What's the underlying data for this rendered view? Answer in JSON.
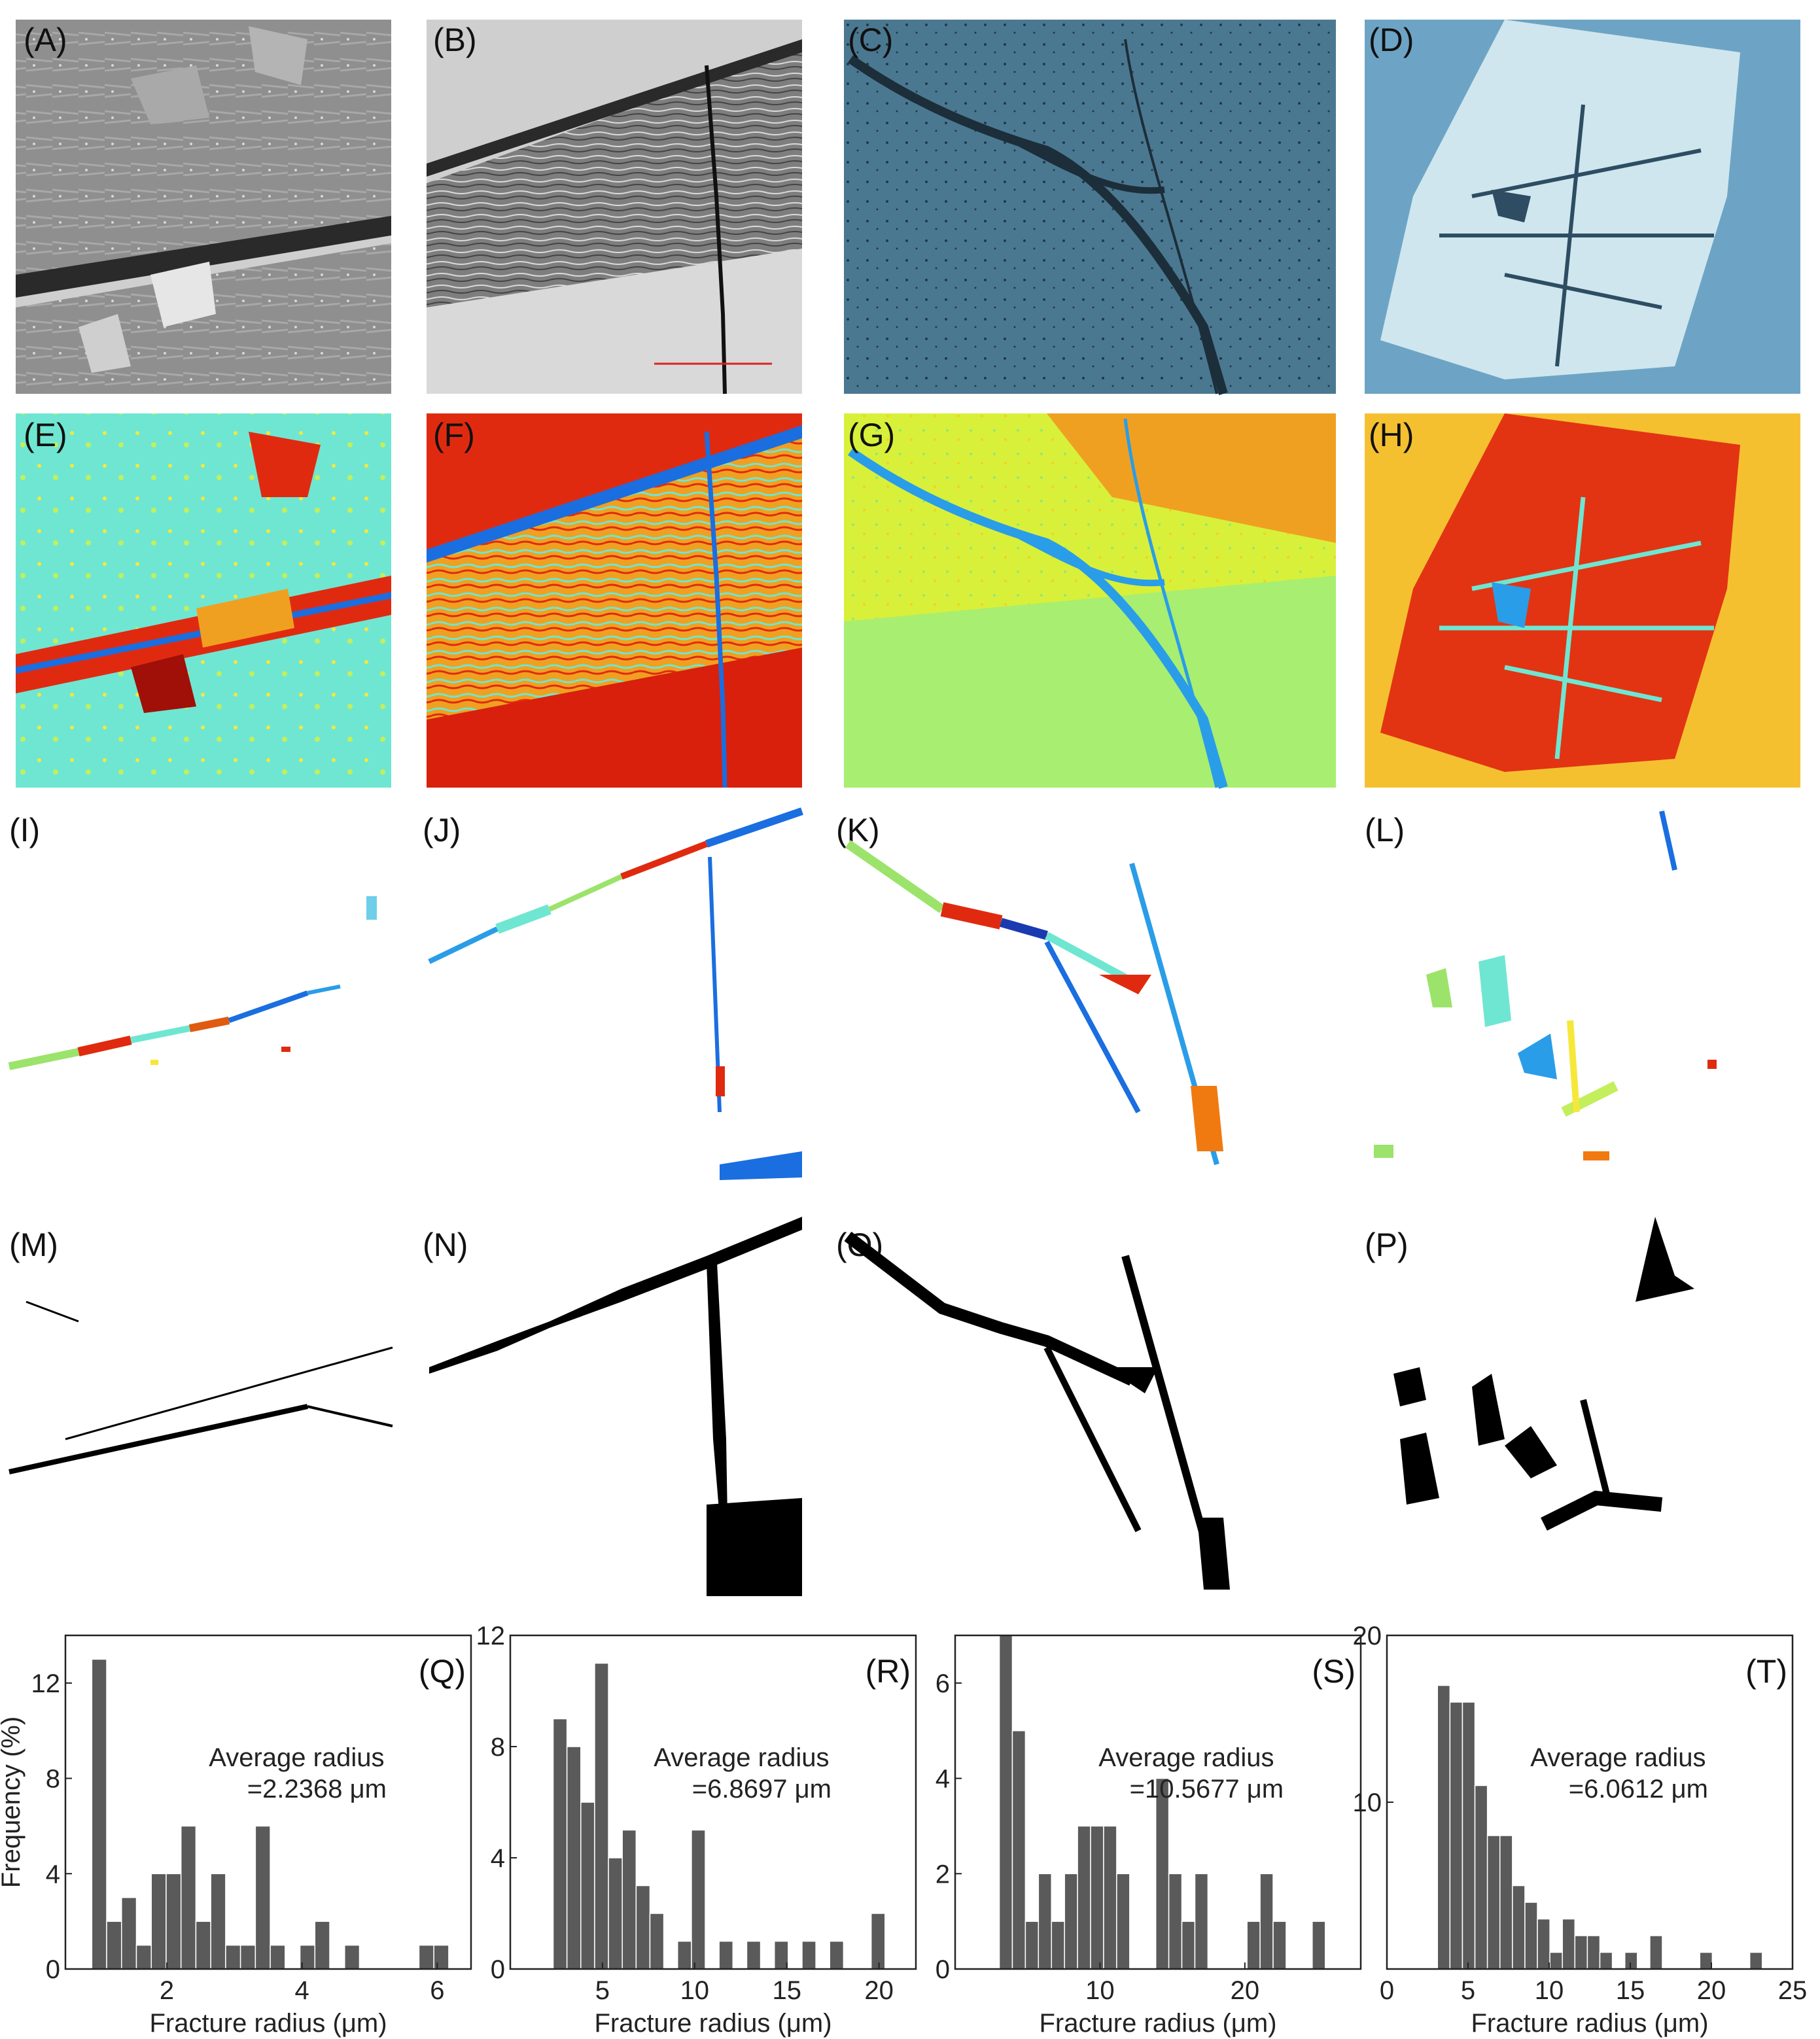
{
  "panels": {
    "row1": [
      "(A)",
      "(B)",
      "(C)",
      "(D)"
    ],
    "row2": [
      "(E)",
      "(F)",
      "(G)",
      "(H)"
    ],
    "row3": [
      "(I)",
      "(J)",
      "(K)",
      "(L)"
    ],
    "row4": [
      "(M)",
      "(N)",
      "(O)",
      "(P)"
    ]
  },
  "colors": {
    "bar": "#5a5a5a",
    "sem_gray": "#8c8c8c",
    "optical_gray": "#9a9a9a",
    "optical_blue": "#4b7891",
    "optical_lightblue": "#9fc6dc",
    "heat_cyan": "#6fe6d2",
    "heat_red": "#e02a10",
    "heat_yellow": "#f5e83a",
    "heat_blue": "#1a6ee0"
  },
  "chart_data": [
    {
      "type": "bar",
      "panel": "(Q)",
      "ylabel": "Frequency (%)",
      "xlabel": "Fracture radius (μm)",
      "annotation": [
        "Average radius",
        "=2.2368 μm"
      ],
      "xlim": [
        0.5,
        6.5
      ],
      "ylim": [
        0,
        14
      ],
      "xticks": [
        "2",
        "4",
        "6"
      ],
      "yticks": [
        "0",
        "4",
        "8",
        "12"
      ],
      "bin_width": 0.22,
      "bin_centers": [
        1.0,
        1.22,
        1.44,
        1.66,
        1.88,
        2.1,
        2.32,
        2.54,
        2.76,
        2.98,
        3.2,
        3.42,
        3.64,
        3.86,
        4.08,
        4.3,
        4.52,
        4.74,
        4.96,
        5.18,
        5.4,
        5.62,
        5.84,
        6.06
      ],
      "values": [
        13,
        2,
        3,
        1,
        4,
        4,
        6,
        2,
        4,
        1,
        1,
        6,
        1,
        0,
        1,
        2,
        0,
        1,
        0,
        0,
        0,
        0,
        1,
        1
      ]
    },
    {
      "type": "bar",
      "panel": "(R)",
      "ylabel": "",
      "xlabel": "Fracture radius (μm)",
      "annotation": [
        "Average radius",
        "=6.8697 μm"
      ],
      "xlim": [
        0,
        22
      ],
      "ylim": [
        0,
        12
      ],
      "xticks": [
        "5",
        "10",
        "15",
        "20"
      ],
      "yticks": [
        "0",
        "4",
        "8",
        "12"
      ],
      "bin_width": 0.75,
      "bin_centers": [
        2.7,
        3.45,
        4.2,
        4.95,
        5.7,
        6.45,
        7.2,
        7.95,
        8.7,
        9.45,
        10.2,
        10.95,
        11.7,
        12.45,
        13.2,
        13.95,
        14.7,
        15.45,
        16.2,
        16.95,
        17.7,
        18.45,
        19.2,
        19.95
      ],
      "values": [
        9,
        8,
        6,
        11,
        4,
        5,
        3,
        2,
        0,
        1,
        5,
        0,
        1,
        0,
        1,
        0,
        1,
        0,
        1,
        0,
        1,
        0,
        0,
        2
      ]
    },
    {
      "type": "bar",
      "panel": "(S)",
      "ylabel": "",
      "xlabel": "Fracture radius (μm)",
      "annotation": [
        "Average radius",
        "=10.5677 μm"
      ],
      "xlim": [
        0,
        28
      ],
      "ylim": [
        0,
        7
      ],
      "xticks": [
        "10",
        "20"
      ],
      "yticks": [
        "0",
        "2",
        "4",
        "6"
      ],
      "bin_width": 0.9,
      "bin_centers": [
        3.5,
        4.4,
        5.3,
        6.2,
        7.1,
        8.0,
        8.9,
        9.8,
        10.7,
        11.6,
        12.5,
        13.4,
        14.3,
        15.2,
        16.1,
        17.0,
        17.9,
        18.8,
        19.7,
        20.6,
        21.5,
        22.4,
        23.3,
        24.2,
        25.1
      ],
      "values": [
        7,
        5,
        1,
        2,
        1,
        2,
        3,
        3,
        3,
        2,
        0,
        0,
        4,
        2,
        1,
        2,
        0,
        0,
        0,
        1,
        2,
        1,
        0,
        0,
        1
      ]
    },
    {
      "type": "bar",
      "panel": "(T)",
      "ylabel": "",
      "xlabel": "Fracture radius (μm)",
      "annotation": [
        "Average radius",
        "=6.0612 μm"
      ],
      "xlim": [
        0,
        25
      ],
      "ylim": [
        0,
        20
      ],
      "xticks": [
        "0",
        "5",
        "10",
        "15",
        "20",
        "25"
      ],
      "yticks": [
        "10",
        "20"
      ],
      "bin_width": 0.77,
      "bin_centers": [
        3.5,
        4.27,
        5.04,
        5.81,
        6.58,
        7.35,
        8.12,
        8.89,
        9.66,
        10.43,
        11.2,
        11.97,
        12.74,
        13.51,
        14.28,
        15.05,
        15.82,
        16.59,
        17.36,
        18.13,
        18.9,
        19.67,
        20.44,
        21.21,
        21.98,
        22.75
      ],
      "values": [
        17,
        16,
        16,
        11,
        8,
        8,
        5,
        4,
        3,
        1,
        3,
        2,
        2,
        1,
        0,
        1,
        0,
        2,
        0,
        0,
        0,
        1,
        0,
        0,
        0,
        1
      ]
    }
  ]
}
